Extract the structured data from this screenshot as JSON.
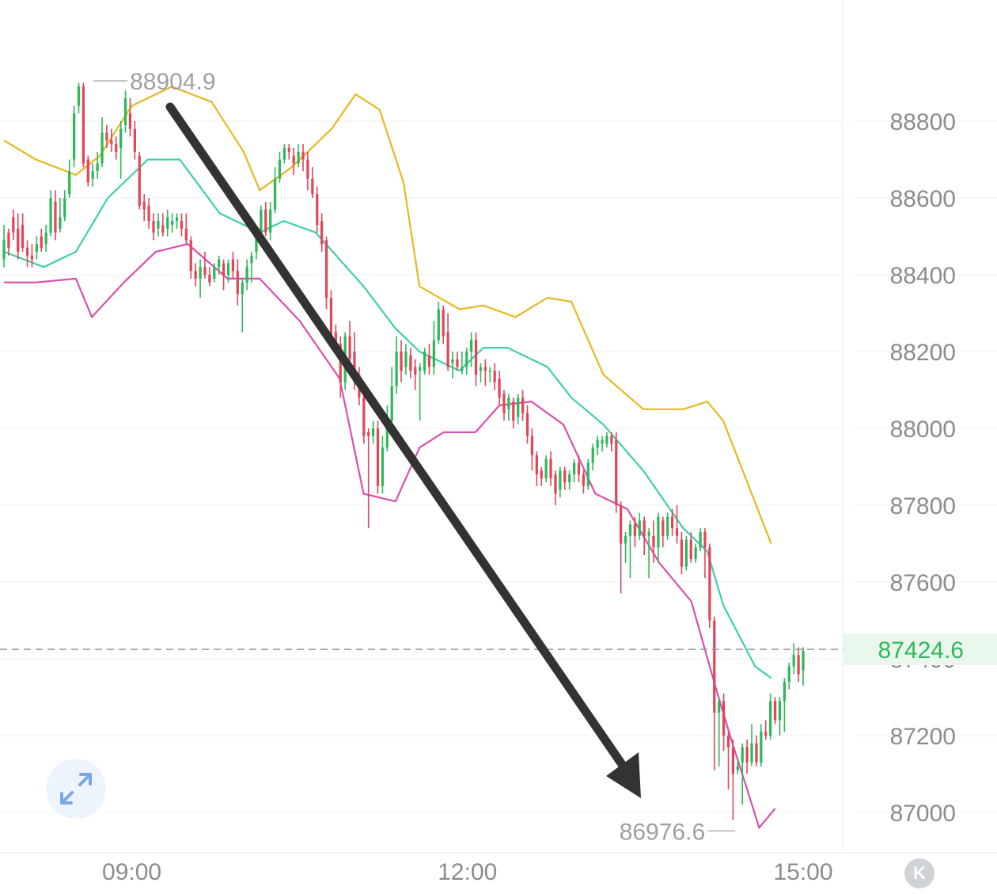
{
  "chart_data": {
    "type": "candlestick",
    "title": "",
    "xlabel": "",
    "ylabel": "",
    "ylim": [
      86900,
      89050
    ],
    "x_ticks": [
      "09:00",
      "12:00",
      "15:00"
    ],
    "y_ticks": [
      87000,
      87200,
      87400,
      87600,
      87800,
      88000,
      88200,
      88400,
      88600,
      88800
    ],
    "current_price": "87424.6",
    "annotations": {
      "high": "88904.9",
      "low": "86976.6"
    },
    "indicator": "Bollinger Bands",
    "grid": true,
    "colors": {
      "up": "#2eb85c",
      "down": "#e0465a",
      "upper": "#e8b820",
      "middle": "#3ecfaa",
      "lower": "#d94fb0",
      "current": "#2eb85c"
    },
    "candles": [
      [
        88440,
        88490,
        88420,
        88530
      ],
      [
        88510,
        88470,
        88450,
        88520
      ],
      [
        88550,
        88510,
        88490,
        88570
      ],
      [
        88520,
        88460,
        88440,
        88560
      ],
      [
        88530,
        88470,
        88460,
        88560
      ],
      [
        88470,
        88450,
        88420,
        88490
      ],
      [
        88450,
        88440,
        88420,
        88480
      ],
      [
        88460,
        88480,
        88440,
        88500
      ],
      [
        88500,
        88470,
        88460,
        88520
      ],
      [
        88480,
        88510,
        88460,
        88530
      ],
      [
        88510,
        88600,
        88500,
        88620
      ],
      [
        88590,
        88510,
        88490,
        88620
      ],
      [
        88520,
        88550,
        88510,
        88600
      ],
      [
        88550,
        88600,
        88540,
        88620
      ],
      [
        88610,
        88670,
        88600,
        88700
      ],
      [
        88700,
        88820,
        88680,
        88840
      ],
      [
        88840,
        88890,
        88820,
        88900
      ],
      [
        88890,
        88690,
        88680,
        88900
      ],
      [
        88700,
        88640,
        88630,
        88710
      ],
      [
        88650,
        88670,
        88630,
        88690
      ],
      [
        88670,
        88690,
        88650,
        88720
      ],
      [
        88690,
        88770,
        88680,
        88810
      ],
      [
        88770,
        88750,
        88730,
        88790
      ],
      [
        88750,
        88740,
        88720,
        88780
      ],
      [
        88740,
        88720,
        88700,
        88760
      ],
      [
        88730,
        88780,
        88650,
        88800
      ],
      [
        88790,
        88860,
        88770,
        88880
      ],
      [
        88820,
        88780,
        88760,
        88860
      ],
      [
        88780,
        88720,
        88700,
        88800
      ],
      [
        88710,
        88580,
        88570,
        88720
      ],
      [
        88590,
        88570,
        88540,
        88610
      ],
      [
        88580,
        88540,
        88520,
        88600
      ],
      [
        88540,
        88510,
        88490,
        88560
      ],
      [
        88520,
        88540,
        88500,
        88560
      ],
      [
        88530,
        88510,
        88500,
        88560
      ],
      [
        88520,
        88550,
        88500,
        88570
      ],
      [
        88530,
        88540,
        88510,
        88560
      ],
      [
        88540,
        88550,
        88520,
        88560
      ],
      [
        88540,
        88520,
        88500,
        88560
      ],
      [
        88520,
        88490,
        88480,
        88560
      ],
      [
        88490,
        88410,
        88390,
        88500
      ],
      [
        88410,
        88390,
        88370,
        88430
      ],
      [
        88390,
        88420,
        88340,
        88440
      ],
      [
        88420,
        88400,
        88390,
        88460
      ],
      [
        88400,
        88380,
        88370,
        88420
      ],
      [
        88390,
        88420,
        88380,
        88430
      ],
      [
        88420,
        88440,
        88400,
        88450
      ],
      [
        88430,
        88400,
        88360,
        88440
      ],
      [
        88400,
        88430,
        88380,
        88440
      ],
      [
        88440,
        88410,
        88390,
        88460
      ],
      [
        88410,
        88350,
        88320,
        88440
      ],
      [
        88350,
        88380,
        88250,
        88390
      ],
      [
        88380,
        88420,
        88360,
        88440
      ],
      [
        88430,
        88450,
        88380,
        88460
      ],
      [
        88460,
        88500,
        88440,
        88510
      ],
      [
        88500,
        88570,
        88490,
        88580
      ],
      [
        88570,
        88510,
        88500,
        88590
      ],
      [
        88510,
        88570,
        88490,
        88590
      ],
      [
        88570,
        88650,
        88560,
        88680
      ],
      [
        88650,
        88700,
        88640,
        88720
      ],
      [
        88700,
        88730,
        88690,
        88740
      ],
      [
        88730,
        88720,
        88700,
        88740
      ],
      [
        88710,
        88690,
        88660,
        88730
      ],
      [
        88690,
        88720,
        88680,
        88740
      ],
      [
        88720,
        88700,
        88670,
        88740
      ],
      [
        88700,
        88650,
        88620,
        88720
      ],
      [
        88650,
        88610,
        88600,
        88680
      ],
      [
        88610,
        88530,
        88510,
        88630
      ],
      [
        88540,
        88480,
        88460,
        88560
      ],
      [
        88490,
        88340,
        88310,
        88500
      ],
      [
        88340,
        88240,
        88230,
        88360
      ],
      [
        88250,
        88210,
        88200,
        88270
      ],
      [
        88220,
        88120,
        88080,
        88240
      ],
      [
        88120,
        88240,
        88100,
        88250
      ],
      [
        88240,
        88180,
        88150,
        88280
      ],
      [
        88200,
        88120,
        88100,
        88250
      ],
      [
        88140,
        88080,
        88060,
        88160
      ],
      [
        88080,
        87980,
        87960,
        88100
      ],
      [
        87990,
        87980,
        87740,
        88000
      ],
      [
        87980,
        88000,
        87960,
        88020
      ],
      [
        88000,
        87850,
        87830,
        88020
      ],
      [
        87850,
        87950,
        87830,
        87980
      ],
      [
        87950,
        88000,
        87940,
        88060
      ],
      [
        88020,
        88110,
        88000,
        88160
      ],
      [
        88110,
        88200,
        88090,
        88240
      ],
      [
        88200,
        88150,
        88120,
        88230
      ],
      [
        88160,
        88200,
        88140,
        88220
      ],
      [
        88190,
        88150,
        88130,
        88210
      ],
      [
        88160,
        88140,
        88100,
        88180
      ],
      [
        88150,
        88160,
        88020,
        88170
      ],
      [
        88150,
        88200,
        88140,
        88210
      ],
      [
        88190,
        88160,
        88140,
        88220
      ],
      [
        88160,
        88230,
        88140,
        88280
      ],
      [
        88230,
        88310,
        88220,
        88330
      ],
      [
        88310,
        88240,
        88220,
        88320
      ],
      [
        88250,
        88160,
        88150,
        88300
      ],
      [
        88170,
        88180,
        88130,
        88200
      ],
      [
        88180,
        88160,
        88150,
        88200
      ],
      [
        88150,
        88160,
        88140,
        88200
      ],
      [
        88160,
        88200,
        88140,
        88210
      ],
      [
        88200,
        88230,
        88160,
        88250
      ],
      [
        88230,
        88140,
        88110,
        88250
      ],
      [
        88150,
        88160,
        88120,
        88170
      ],
      [
        88160,
        88150,
        88110,
        88180
      ],
      [
        88150,
        88150,
        88120,
        88160
      ],
      [
        88150,
        88120,
        88100,
        88170
      ],
      [
        88130,
        88080,
        88060,
        88150
      ],
      [
        88090,
        88040,
        88020,
        88100
      ],
      [
        88050,
        88080,
        88020,
        88090
      ],
      [
        88070,
        88020,
        88000,
        88080
      ],
      [
        88030,
        88080,
        88010,
        88090
      ],
      [
        88080,
        88040,
        88020,
        88100
      ],
      [
        88040,
        87980,
        87960,
        88060
      ],
      [
        87980,
        87930,
        87890,
        88000
      ],
      [
        87930,
        87880,
        87850,
        87940
      ],
      [
        87890,
        87870,
        87850,
        87900
      ],
      [
        87870,
        87920,
        87860,
        87930
      ],
      [
        87920,
        87870,
        87850,
        87940
      ],
      [
        87880,
        87830,
        87800,
        87890
      ],
      [
        87840,
        87890,
        87820,
        87900
      ],
      [
        87890,
        87860,
        87840,
        87900
      ],
      [
        87860,
        87880,
        87840,
        87890
      ],
      [
        87880,
        87910,
        87860,
        87920
      ],
      [
        87910,
        87880,
        87860,
        87930
      ],
      [
        87880,
        87850,
        87830,
        87890
      ],
      [
        87850,
        87910,
        87840,
        87920
      ],
      [
        87910,
        87950,
        87890,
        87960
      ],
      [
        87950,
        87970,
        87930,
        87980
      ],
      [
        87960,
        87970,
        87940,
        87980
      ],
      [
        87960,
        87980,
        87950,
        87990
      ],
      [
        87980,
        87960,
        87940,
        87990
      ],
      [
        87970,
        87800,
        87780,
        87990
      ],
      [
        87800,
        87700,
        87570,
        87810
      ],
      [
        87700,
        87720,
        87650,
        87730
      ],
      [
        87720,
        87750,
        87610,
        87760
      ],
      [
        87750,
        87720,
        87690,
        87770
      ],
      [
        87720,
        87760,
        87710,
        87780
      ],
      [
        87760,
        87720,
        87670,
        87770
      ],
      [
        87720,
        87730,
        87610,
        87740
      ],
      [
        87720,
        87690,
        87650,
        87760
      ],
      [
        87690,
        87770,
        87650,
        87780
      ],
      [
        87760,
        87720,
        87690,
        87770
      ],
      [
        87720,
        87770,
        87710,
        87780
      ],
      [
        87770,
        87740,
        87720,
        87790
      ],
      [
        87740,
        87720,
        87700,
        87800
      ],
      [
        87710,
        87640,
        87620,
        87730
      ],
      [
        87640,
        87710,
        87630,
        87720
      ],
      [
        87710,
        87660,
        87650,
        87730
      ],
      [
        87660,
        87690,
        87650,
        87700
      ],
      [
        87690,
        87730,
        87680,
        87740
      ],
      [
        87730,
        87690,
        87610,
        87740
      ],
      [
        87690,
        87500,
        87480,
        87700
      ],
      [
        87500,
        87260,
        87110,
        87510
      ],
      [
        87260,
        87290,
        87120,
        87300
      ],
      [
        87290,
        87200,
        87160,
        87310
      ],
      [
        87200,
        87170,
        87060,
        87210
      ],
      [
        87170,
        87100,
        86980,
        87190
      ],
      [
        87110,
        87120,
        87100,
        87140
      ],
      [
        87130,
        87170,
        87020,
        87180
      ],
      [
        87170,
        87130,
        87100,
        87190
      ],
      [
        87130,
        87180,
        87120,
        87230
      ],
      [
        87180,
        87130,
        87120,
        87200
      ],
      [
        87130,
        87210,
        87120,
        87230
      ],
      [
        87210,
        87200,
        87190,
        87240
      ],
      [
        87200,
        87290,
        87190,
        87310
      ],
      [
        87290,
        87240,
        87230,
        87300
      ],
      [
        87240,
        87290,
        87200,
        87300
      ],
      [
        87290,
        87340,
        87210,
        87350
      ],
      [
        87340,
        87380,
        87320,
        87390
      ],
      [
        87380,
        87410,
        87360,
        87440
      ],
      [
        87410,
        87360,
        87340,
        87430
      ],
      [
        87370,
        87420,
        87330,
        87430
      ]
    ],
    "bollinger": {
      "upper": [
        [
          0,
          88750
        ],
        [
          0.04,
          88700
        ],
        [
          0.09,
          88660
        ],
        [
          0.12,
          88710
        ],
        [
          0.16,
          88840
        ],
        [
          0.21,
          88890
        ],
        [
          0.26,
          88850
        ],
        [
          0.3,
          88720
        ],
        [
          0.32,
          88620
        ],
        [
          0.36,
          88680
        ],
        [
          0.41,
          88780
        ],
        [
          0.44,
          88870
        ],
        [
          0.47,
          88830
        ],
        [
          0.5,
          88640
        ],
        [
          0.52,
          88370
        ],
        [
          0.57,
          88310
        ],
        [
          0.6,
          88320
        ],
        [
          0.64,
          88290
        ],
        [
          0.68,
          88340
        ],
        [
          0.71,
          88330
        ],
        [
          0.75,
          88140
        ],
        [
          0.8,
          88050
        ],
        [
          0.85,
          88050
        ],
        [
          0.88,
          88070
        ],
        [
          0.9,
          88020
        ],
        [
          0.93,
          87860
        ],
        [
          0.96,
          87700
        ]
      ],
      "middle": [
        [
          0,
          88460
        ],
        [
          0.05,
          88420
        ],
        [
          0.09,
          88460
        ],
        [
          0.13,
          88600
        ],
        [
          0.18,
          88700
        ],
        [
          0.22,
          88700
        ],
        [
          0.27,
          88560
        ],
        [
          0.32,
          88510
        ],
        [
          0.35,
          88540
        ],
        [
          0.39,
          88510
        ],
        [
          0.45,
          88370
        ],
        [
          0.49,
          88260
        ],
        [
          0.52,
          88200
        ],
        [
          0.57,
          88150
        ],
        [
          0.6,
          88210
        ],
        [
          0.63,
          88210
        ],
        [
          0.68,
          88160
        ],
        [
          0.71,
          88080
        ],
        [
          0.75,
          88010
        ],
        [
          0.8,
          87890
        ],
        [
          0.85,
          87740
        ],
        [
          0.88,
          87680
        ],
        [
          0.9,
          87540
        ],
        [
          0.92,
          87460
        ],
        [
          0.94,
          87380
        ],
        [
          0.96,
          87350
        ]
      ],
      "lower": [
        [
          0,
          88380
        ],
        [
          0.04,
          88380
        ],
        [
          0.09,
          88390
        ],
        [
          0.11,
          88290
        ],
        [
          0.15,
          88380
        ],
        [
          0.19,
          88460
        ],
        [
          0.23,
          88480
        ],
        [
          0.28,
          88390
        ],
        [
          0.32,
          88390
        ],
        [
          0.37,
          88280
        ],
        [
          0.42,
          88130
        ],
        [
          0.45,
          87830
        ],
        [
          0.49,
          87810
        ],
        [
          0.52,
          87950
        ],
        [
          0.55,
          87990
        ],
        [
          0.59,
          87990
        ],
        [
          0.62,
          88060
        ],
        [
          0.66,
          88070
        ],
        [
          0.7,
          88010
        ],
        [
          0.74,
          87830
        ],
        [
          0.78,
          87790
        ],
        [
          0.82,
          87650
        ],
        [
          0.86,
          87550
        ],
        [
          0.89,
          87330
        ],
        [
          0.91,
          87190
        ],
        [
          0.93,
          87060
        ],
        [
          0.945,
          86960
        ],
        [
          0.965,
          87010
        ]
      ]
    }
  },
  "ui": {
    "expand_icon": "expand-icon",
    "k_button_label": "K"
  }
}
